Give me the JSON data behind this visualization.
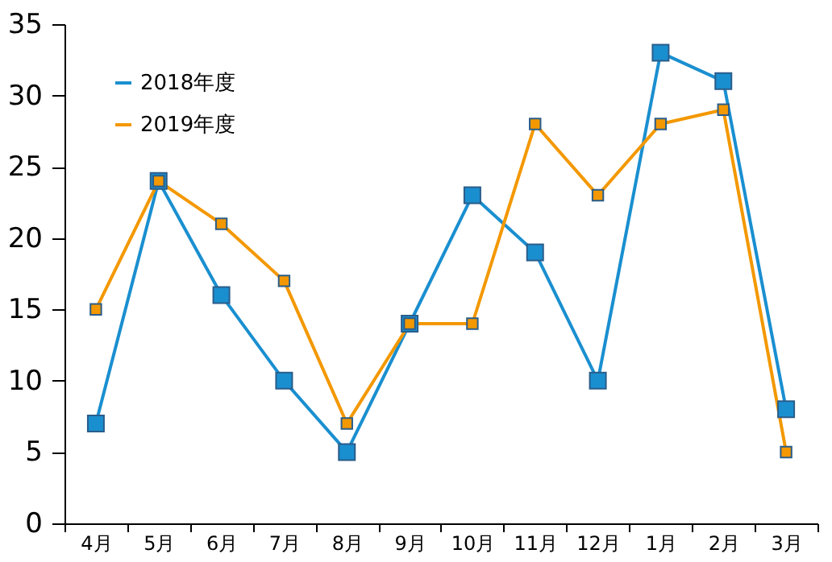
{
  "chart_data": {
    "type": "line",
    "categories": [
      "4月",
      "5月",
      "6月",
      "7月",
      "8月",
      "9月",
      "10月",
      "11月",
      "12月",
      "1月",
      "2月",
      "3月"
    ],
    "series": [
      {
        "name": "2018年度",
        "color": "#1a8fd0",
        "values": [
          7,
          24,
          16,
          10,
          5,
          14,
          23,
          19,
          10,
          33,
          31,
          8
        ]
      },
      {
        "name": "2019年度",
        "color": "#f39800",
        "values": [
          15,
          24,
          21,
          17,
          7,
          14,
          14,
          28,
          23,
          28,
          29,
          5
        ]
      }
    ],
    "ylim": [
      0,
      35
    ],
    "yticks": [
      0,
      5,
      10,
      15,
      20,
      25,
      30,
      35
    ],
    "grid": false,
    "legend": "top left",
    "marker": "square",
    "line_style": "solid"
  }
}
